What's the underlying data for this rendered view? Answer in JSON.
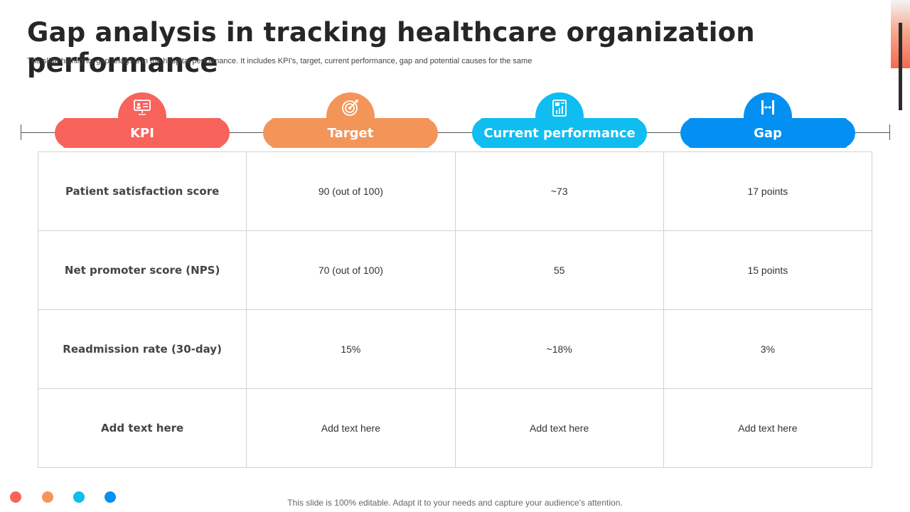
{
  "title": "Gap analysis in tracking healthcare organization performance",
  "subtitle": "The slide highlights gap analysis in the hospital performance. It includes KPI’s, target, current performance, gap and potential causes for the same",
  "colors": {
    "red": "#f8635c",
    "orange": "#f39559",
    "cyan": "#0fbdf0",
    "blue": "#0490f3"
  },
  "headers": [
    {
      "label": "KPI",
      "icon": "presentation-icon"
    },
    {
      "label": "Target",
      "icon": "target-icon"
    },
    {
      "label": "Current performance",
      "icon": "report-chart-icon"
    },
    {
      "label": "Gap",
      "icon": "gap-measure-icon"
    }
  ],
  "rows": [
    [
      "Patient satisfaction score",
      "90 (out of 100)",
      "~73",
      "17 points"
    ],
    [
      "Net promoter score (NPS)",
      "70 (out of 100)",
      "55",
      "15 points"
    ],
    [
      "Readmission rate (30-day)",
      "15%",
      "~18%",
      "3%"
    ],
    [
      "Add text here",
      "Add text here",
      "Add text here",
      "Add text here"
    ]
  ],
  "footer": "This slide is 100% editable. Adapt it to your needs and capture your audience’s attention."
}
